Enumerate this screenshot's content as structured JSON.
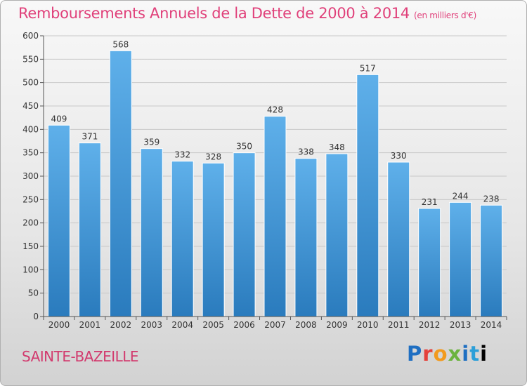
{
  "header": {
    "title": "Remboursements Annuels de la Dette de 2000 à 2014",
    "unit": "(en milliers d'€)"
  },
  "footer": {
    "city": "SAINTE-BAZEILLE",
    "logo": [
      "P",
      "r",
      "o",
      "x",
      "i",
      "t",
      "i"
    ]
  },
  "colors": {
    "bar_light": "#5fb0ea",
    "bar_dark": "#2a7bbd",
    "grid": "#c8c8c8",
    "title": "#e0407a"
  },
  "chart_data": {
    "type": "bar",
    "title": "Remboursements Annuels de la Dette de 2000 à 2014",
    "xlabel": "",
    "ylabel": "",
    "categories": [
      "2000",
      "2001",
      "2002",
      "2003",
      "2004",
      "2005",
      "2006",
      "2007",
      "2008",
      "2009",
      "2010",
      "2011",
      "2012",
      "2013",
      "2014"
    ],
    "values": [
      409,
      371,
      568,
      359,
      332,
      328,
      350,
      428,
      338,
      348,
      517,
      330,
      231,
      244,
      238
    ],
    "ylim": [
      0,
      600
    ],
    "yticks": [
      0,
      50,
      100,
      150,
      200,
      250,
      300,
      350,
      400,
      450,
      500,
      550,
      600
    ],
    "grid": true,
    "legend": "none"
  }
}
